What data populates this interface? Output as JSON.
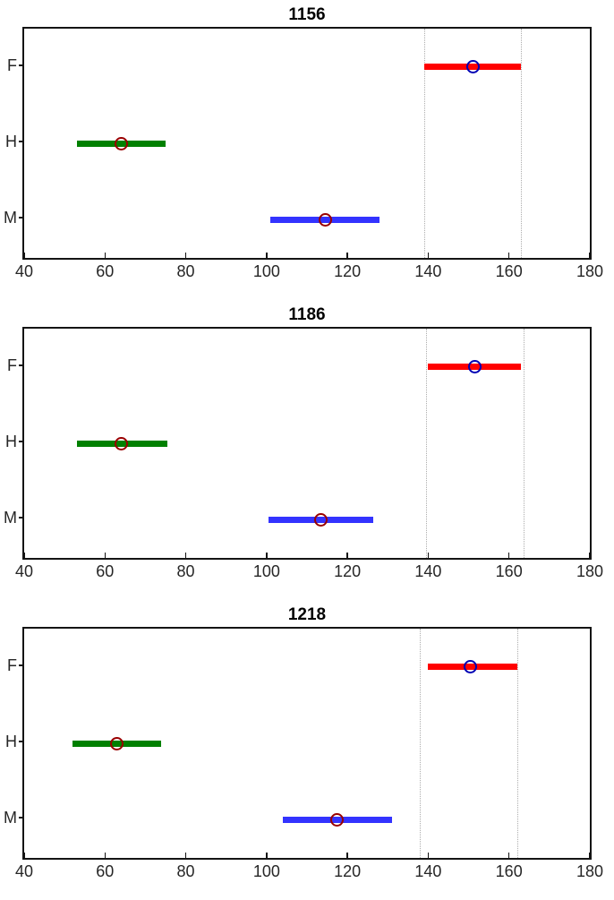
{
  "figure": {
    "background": "#ffffff",
    "axis_color": "#141414",
    "title_color": "#000000",
    "tick_label_color": "#262626",
    "ref_line_color": "#adadad"
  },
  "chart_data": [
    {
      "type": "bar",
      "subtype": "horizontal-interval",
      "title": "1156",
      "categories": [
        "F",
        "H",
        "M"
      ],
      "xlim": [
        40,
        180
      ],
      "x_ticks": [
        40,
        60,
        80,
        100,
        120,
        140,
        160,
        180
      ],
      "xlabel": "",
      "ylabel": "",
      "grid": false,
      "legend": false,
      "series": [
        {
          "name": "F",
          "range": [
            139,
            163
          ],
          "center": 151,
          "bar_color": "#ff0000",
          "marker_color": "#0000b4"
        },
        {
          "name": "H",
          "range": [
            53,
            75
          ],
          "center": 64,
          "bar_color": "#008000",
          "marker_color": "#990000"
        },
        {
          "name": "M",
          "range": [
            101,
            128
          ],
          "center": 114.5,
          "bar_color": "#3333ff",
          "marker_color": "#990000"
        }
      ],
      "reference_lines": [
        139,
        163
      ]
    },
    {
      "type": "bar",
      "subtype": "horizontal-interval",
      "title": "1186",
      "categories": [
        "F",
        "H",
        "M"
      ],
      "xlim": [
        40,
        180
      ],
      "x_ticks": [
        40,
        60,
        80,
        100,
        120,
        140,
        160,
        180
      ],
      "xlabel": "",
      "ylabel": "",
      "grid": false,
      "legend": false,
      "series": [
        {
          "name": "F",
          "range": [
            140,
            163
          ],
          "center": 151.5,
          "bar_color": "#ff0000",
          "marker_color": "#0000b4"
        },
        {
          "name": "H",
          "range": [
            53,
            75.5
          ],
          "center": 64,
          "bar_color": "#008000",
          "marker_color": "#990000"
        },
        {
          "name": "M",
          "range": [
            100.5,
            126.5
          ],
          "center": 113.5,
          "bar_color": "#3333ff",
          "marker_color": "#990000"
        }
      ],
      "reference_lines": [
        139.5,
        163.5
      ]
    },
    {
      "type": "bar",
      "subtype": "horizontal-interval",
      "title": "1218",
      "categories": [
        "F",
        "H",
        "M"
      ],
      "xlim": [
        40,
        180
      ],
      "x_ticks": [
        40,
        60,
        80,
        100,
        120,
        140,
        160,
        180
      ],
      "xlabel": "",
      "ylabel": "",
      "grid": false,
      "legend": false,
      "series": [
        {
          "name": "F",
          "range": [
            140,
            162
          ],
          "center": 150.5,
          "bar_color": "#ff0000",
          "marker_color": "#0000b4"
        },
        {
          "name": "H",
          "range": [
            52,
            74
          ],
          "center": 63,
          "bar_color": "#008000",
          "marker_color": "#990000"
        },
        {
          "name": "M",
          "range": [
            104,
            131
          ],
          "center": 117.5,
          "bar_color": "#3333ff",
          "marker_color": "#990000"
        }
      ],
      "reference_lines": [
        138,
        162
      ]
    }
  ]
}
